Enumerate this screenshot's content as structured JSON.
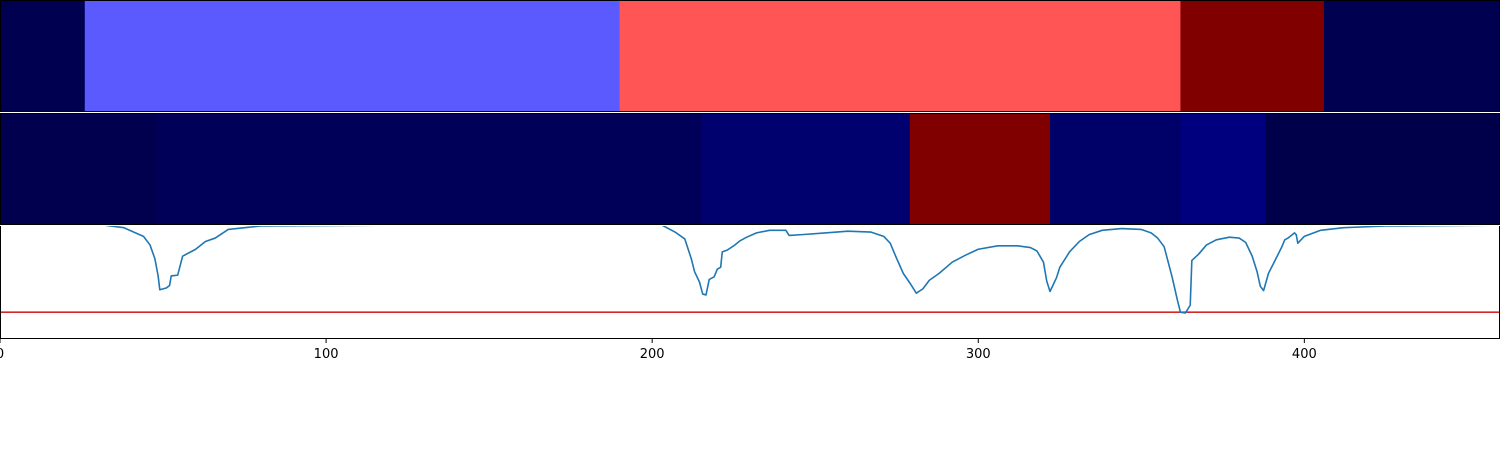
{
  "chart_data": [
    {
      "type": "heatmap",
      "x": [
        0,
        26,
        190,
        362,
        406,
        460
      ],
      "segment_colors": [
        "#000050",
        "#5a5aff",
        "#ff5555",
        "#800000",
        "#000050"
      ]
    },
    {
      "type": "heatmap",
      "x": [
        0,
        48,
        215,
        279,
        322,
        362,
        388,
        460
      ],
      "segment_colors": [
        "#00004e",
        "#000059",
        "#00006e",
        "#800000",
        "#000069",
        "#00007e",
        "#00004a"
      ]
    },
    {
      "type": "line",
      "xlim": [
        0,
        460
      ],
      "ylim": [
        -0.3,
        1.0
      ],
      "xticks": [
        "0",
        "100",
        "200",
        "300",
        "400"
      ],
      "tick_values": [
        0,
        100,
        200,
        300,
        400
      ],
      "threshold": {
        "y": 0.0,
        "color": "#d62728"
      },
      "series": [
        {
          "color": "#1f77b4",
          "points": [
            [
              0,
              1.02
            ],
            [
              30,
              1.02
            ],
            [
              38,
              0.98
            ],
            [
              44,
              0.88
            ],
            [
              46,
              0.78
            ],
            [
              47.5,
              0.62
            ],
            [
              48.5,
              0.42
            ],
            [
              49,
              0.26
            ],
            [
              51,
              0.28
            ],
            [
              52,
              0.31
            ],
            [
              52.5,
              0.42
            ],
            [
              54.5,
              0.43
            ],
            [
              56,
              0.65
            ],
            [
              60,
              0.73
            ],
            [
              63,
              0.82
            ],
            [
              66,
              0.86
            ],
            [
              70,
              0.96
            ],
            [
              75,
              0.98
            ],
            [
              80,
              1.0
            ],
            [
              120,
              1.01
            ],
            [
              190,
              1.02
            ],
            [
              200,
              1.02
            ],
            [
              203,
              1.01
            ],
            [
              207,
              0.93
            ],
            [
              210,
              0.85
            ],
            [
              212,
              0.62
            ],
            [
              213,
              0.47
            ],
            [
              214.5,
              0.35
            ],
            [
              215.5,
              0.21
            ],
            [
              216.5,
              0.2
            ],
            [
              217.5,
              0.38
            ],
            [
              219,
              0.41
            ],
            [
              220,
              0.5
            ],
            [
              221,
              0.52
            ],
            [
              221.5,
              0.7
            ],
            [
              223,
              0.72
            ],
            [
              225,
              0.77
            ],
            [
              227,
              0.83
            ],
            [
              229,
              0.87
            ],
            [
              232,
              0.92
            ],
            [
              236,
              0.95
            ],
            [
              241,
              0.95
            ],
            [
              242,
              0.89
            ],
            [
              246,
              0.9
            ],
            [
              253,
              0.92
            ],
            [
              260,
              0.94
            ],
            [
              267,
              0.93
            ],
            [
              271,
              0.88
            ],
            [
              273,
              0.8
            ],
            [
              275,
              0.62
            ],
            [
              277,
              0.45
            ],
            [
              279,
              0.34
            ],
            [
              281,
              0.22
            ],
            [
              283,
              0.27
            ],
            [
              285,
              0.37
            ],
            [
              288,
              0.45
            ],
            [
              292,
              0.58
            ],
            [
              296,
              0.66
            ],
            [
              300,
              0.73
            ],
            [
              306,
              0.77
            ],
            [
              312,
              0.77
            ],
            [
              316,
              0.75
            ],
            [
              318,
              0.71
            ],
            [
              320,
              0.58
            ],
            [
              321,
              0.36
            ],
            [
              322,
              0.24
            ],
            [
              324,
              0.4
            ],
            [
              325,
              0.52
            ],
            [
              328,
              0.7
            ],
            [
              331,
              0.82
            ],
            [
              334,
              0.9
            ],
            [
              338,
              0.95
            ],
            [
              344,
              0.97
            ],
            [
              350,
              0.96
            ],
            [
              353,
              0.92
            ],
            [
              355,
              0.86
            ],
            [
              357,
              0.76
            ],
            [
              359.5,
              0.4
            ],
            [
              361,
              0.15
            ],
            [
              362,
              0.0
            ],
            [
              363.5,
              -0.01
            ],
            [
              365,
              0.08
            ],
            [
              365.5,
              0.6
            ],
            [
              367.5,
              0.67
            ],
            [
              370,
              0.78
            ],
            [
              373,
              0.84
            ],
            [
              377,
              0.87
            ],
            [
              380,
              0.86
            ],
            [
              382,
              0.81
            ],
            [
              384,
              0.65
            ],
            [
              385.5,
              0.47
            ],
            [
              386.5,
              0.3
            ],
            [
              387.5,
              0.25
            ],
            [
              389,
              0.45
            ],
            [
              391,
              0.6
            ],
            [
              393,
              0.75
            ],
            [
              394,
              0.84
            ],
            [
              395,
              0.86
            ],
            [
              397,
              0.92
            ],
            [
              397.5,
              0.9
            ],
            [
              398,
              0.8
            ],
            [
              400,
              0.88
            ],
            [
              405,
              0.95
            ],
            [
              412,
              0.98
            ],
            [
              425,
              1.0
            ],
            [
              460,
              1.01
            ]
          ]
        }
      ]
    }
  ],
  "colors": {
    "axis": "#000000",
    "background": "#ffffff"
  }
}
